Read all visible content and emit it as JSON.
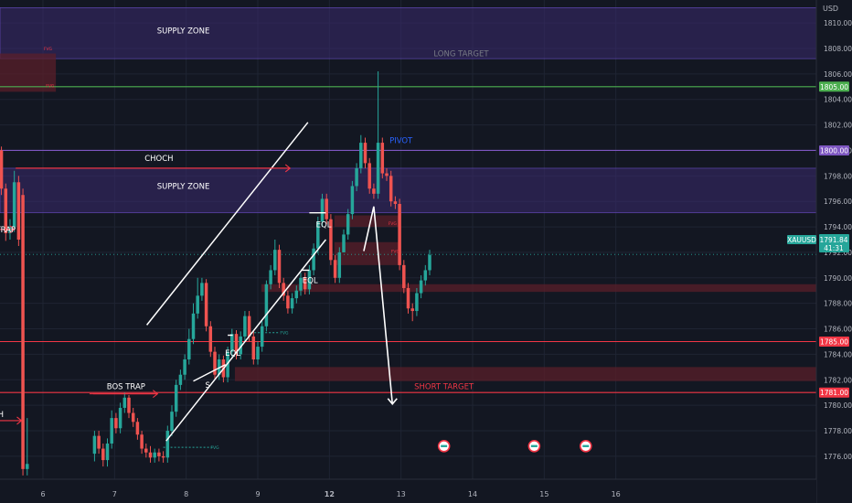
{
  "colors": {
    "background": "#131722",
    "grid": "#1f2433",
    "axis_text": "#b2b5be",
    "bull": "#26a69a",
    "bear": "#ef5350",
    "supply_zone": "#3b2a6e",
    "supply_zone_border": "#6a4fc6",
    "pivot": "#7e57c2",
    "long_target": "#4caf50",
    "red_level": "#f23645",
    "fvg_red": "#5a1f2a",
    "fvg_teal": "#1f5248",
    "drawing": "#ffffff",
    "pivot_text": "#2962ff",
    "short_target_text": "#f23645",
    "arrow_red": "#f23645"
  },
  "chart_data": {
    "type": "candlestick",
    "symbol": "XAUUSD",
    "currency": "USD",
    "ylim": [
      1774.2,
      1811.8
    ],
    "xlim": [
      5.4,
      16.8
    ],
    "y_ticks": [
      "1810.00",
      "1808.00",
      "1806.00",
      "1804.00",
      "1802.00",
      "1800.00",
      "1798.00",
      "1796.00",
      "1794.00",
      "1792.00",
      "1790.00",
      "1788.00",
      "1786.00",
      "1784.00",
      "1782.00",
      "1780.00",
      "1778.00",
      "1776.00"
    ],
    "x_ticks": [
      {
        "x": 6,
        "label": "6"
      },
      {
        "x": 7,
        "label": "7"
      },
      {
        "x": 8,
        "label": "8"
      },
      {
        "x": 9,
        "label": "9"
      },
      {
        "x": 10,
        "label": "12"
      },
      {
        "x": 11,
        "label": "13"
      },
      {
        "x": 12,
        "label": "14"
      },
      {
        "x": 13,
        "label": "15"
      },
      {
        "x": 14,
        "label": "16"
      }
    ],
    "price_labels": [
      {
        "price": 1805.0,
        "text": "1805.00",
        "color": "#4caf50"
      },
      {
        "price": 1800.0,
        "text": "1800.00",
        "color": "#7e57c2"
      },
      {
        "price": 1785.0,
        "text": "1785.00",
        "color": "#f23645"
      },
      {
        "price": 1781.0,
        "text": "1781.00",
        "color": "#f23645"
      }
    ],
    "current_price": {
      "price": 1791.84,
      "symbol": "XAUUSD",
      "value": "1791.84",
      "countdown": "41:31",
      "color": "#26a69a"
    },
    "levels": [
      {
        "price": 1805.0,
        "x1": 5.4,
        "x2": 16.8,
        "color": "#4caf50"
      },
      {
        "price": 1800.0,
        "x1": 5.4,
        "x2": 16.8,
        "color": "#7e57c2"
      },
      {
        "price": 1785.0,
        "x1": 5.4,
        "x2": 16.8,
        "color": "#f23645"
      },
      {
        "price": 1781.0,
        "x1": 5.4,
        "x2": 16.8,
        "color": "#f23645"
      },
      {
        "price": 1798.6,
        "x1": 5.62,
        "x2": 9.45,
        "color": "#f23645"
      },
      {
        "price": 1780.9,
        "x1": 6.65,
        "x2": 7.6,
        "color": "#f23645"
      }
    ],
    "zones": [
      {
        "type": "supply",
        "y_top": 1811.2,
        "y_bot": 1807.2,
        "x1": 5.4,
        "x2": 16.8
      },
      {
        "type": "supply",
        "y_top": 1798.6,
        "y_bot": 1795.1,
        "x1": 5.4,
        "x2": 16.8
      },
      {
        "type": "fvg_red",
        "y_top": 1807.6,
        "y_bot": 1804.6,
        "x1": 5.4,
        "x2": 6.18
      },
      {
        "type": "fvg_red",
        "y_top": 1789.5,
        "y_bot": 1788.9,
        "x1": 9.05,
        "x2": 16.8
      },
      {
        "type": "fvg_red",
        "y_top": 1783.0,
        "y_bot": 1781.9,
        "x1": 8.68,
        "x2": 16.8
      },
      {
        "type": "fvg_red",
        "y_top": 1792.8,
        "y_bot": 1791.0,
        "x1": 10.07,
        "x2": 11.0
      },
      {
        "type": "fvg_red",
        "y_top": 1794.9,
        "y_bot": 1794.0,
        "x1": 10.07,
        "x2": 10.98
      }
    ],
    "fvg_tags": [
      {
        "x": 6.07,
        "price": 1808.0,
        "text": "FVG",
        "color": "#f23645"
      },
      {
        "x": 6.1,
        "price": 1805.1,
        "text": "FVG",
        "color": "#f23645"
      },
      {
        "x": 10.88,
        "price": 1794.3,
        "text": "FVG",
        "color": "#f23645"
      },
      {
        "x": 10.92,
        "price": 1792.1,
        "text": "FVG",
        "color": "#f23645"
      },
      {
        "x": 9.37,
        "price": 1785.7,
        "text": "FVG",
        "color": "#26a69a"
      },
      {
        "x": 8.4,
        "price": 1776.7,
        "text": "FVG",
        "color": "#26a69a"
      }
    ],
    "fvg_lines": [
      {
        "price": 1785.7,
        "x1": 8.9,
        "x2": 9.3,
        "color": "#26a69a"
      },
      {
        "price": 1776.7,
        "x1": 7.68,
        "x2": 8.38,
        "color": "#26a69a"
      }
    ],
    "labels": [
      {
        "id": "supply_zone_top",
        "text": "SUPPLY ZONE",
        "x": 7.96,
        "price": 1809.4,
        "color": "#ffffff"
      },
      {
        "id": "long_target",
        "text": "LONG TARGET",
        "x": 11.84,
        "price": 1807.6,
        "color": "#787b86"
      },
      {
        "id": "pivot",
        "text": "PIVOT",
        "x": 11.0,
        "price": 1800.8,
        "color": "#2962ff"
      },
      {
        "id": "choch",
        "text": "CHOCH",
        "x": 7.62,
        "price": 1799.4,
        "color": "#ffffff"
      },
      {
        "id": "supply_zone_mid",
        "text": "SUPPLY ZONE",
        "x": 7.96,
        "price": 1797.2,
        "color": "#ffffff"
      },
      {
        "id": "eql_top",
        "text": "EQL",
        "x": 9.92,
        "price": 1794.2,
        "color": "#ffffff"
      },
      {
        "id": "eql_mid",
        "text": "EQL",
        "x": 9.73,
        "price": 1789.8,
        "color": "#ffffff"
      },
      {
        "id": "eql_low",
        "text": "EQL",
        "x": 8.65,
        "price": 1784.1,
        "color": "#ffffff"
      },
      {
        "id": "trap_left",
        "text": "TRAP",
        "x": 5.48,
        "price": 1793.8,
        "color": "#ffffff"
      },
      {
        "id": "bos_trap",
        "text": "BOS TRAP",
        "x": 7.16,
        "price": 1781.5,
        "color": "#ffffff"
      },
      {
        "id": "s_mark",
        "text": "S",
        "x": 8.3,
        "price": 1781.6,
        "color": "#ffffff"
      },
      {
        "id": "h_left",
        "text": "H",
        "x": 5.41,
        "price": 1779.3,
        "color": "#ffffff"
      },
      {
        "id": "short_target",
        "text": "SHORT TARGET",
        "x": 11.6,
        "price": 1781.5,
        "color": "#f23645"
      }
    ],
    "channel_lines": [
      {
        "x1": 7.45,
        "y1": 1786.3,
        "x2": 9.7,
        "y2": 1802.2
      },
      {
        "x1": 7.72,
        "y1": 1777.2,
        "x2": 9.95,
        "y2": 1793.0
      }
    ],
    "segments": [
      {
        "x1": 8.1,
        "y1": 1781.9,
        "x2": 8.55,
        "y2": 1783.2
      },
      {
        "x1": 8.58,
        "y1": 1785.5,
        "x2": 8.65,
        "y2": 1785.5
      },
      {
        "x1": 9.72,
        "y1": 1795.1,
        "x2": 9.95,
        "y2": 1795.1
      },
      {
        "x1": 9.6,
        "y1": 1790.6,
        "x2": 9.72,
        "y2": 1790.6
      }
    ],
    "projection": [
      {
        "x": 10.48,
        "y": 1792.1
      },
      {
        "x": 10.62,
        "y": 1795.6
      },
      {
        "x": 10.88,
        "y": 1780.1
      }
    ],
    "red_arrows": [
      {
        "x1": 5.4,
        "y1": 1793.8,
        "x2": 5.6,
        "y2": 1793.8
      },
      {
        "x1": 5.62,
        "y1": 1798.6,
        "x2": 9.45,
        "y2": 1798.6
      },
      {
        "x1": 6.7,
        "y1": 1780.9,
        "x2": 7.6,
        "y2": 1780.9
      },
      {
        "x1": 5.4,
        "y1": 1778.8,
        "x2": 5.7,
        "y2": 1778.8
      }
    ],
    "candles_left": {
      "x": [
        5.42,
        5.48,
        5.54,
        5.6,
        5.66,
        5.72,
        5.78
      ],
      "o": [
        1800.0,
        1797.0,
        1793.5,
        1794.0,
        1797.5,
        1796.5,
        1775.0
      ],
      "c": [
        1797.0,
        1793.5,
        1794.0,
        1797.5,
        1793.0,
        1775.0,
        1775.4
      ],
      "h": [
        1800.3,
        1797.4,
        1794.6,
        1798.4,
        1798.0,
        1797.0,
        1779.0
      ],
      "l": [
        1796.5,
        1792.9,
        1793.0,
        1793.6,
        1792.5,
        1774.5,
        1774.5
      ]
    },
    "candles_week": {
      "x_start": 6.72,
      "x_step": 0.06,
      "o": [
        1776.2,
        1777.6,
        1776.6,
        1775.7,
        1777.0,
        1779.0,
        1778.2,
        1779.8,
        1780.6,
        1779.4,
        1778.7,
        1777.7,
        1776.6,
        1776.3,
        1775.9,
        1776.3,
        1776.0,
        1775.9,
        1778.0,
        1779.5,
        1781.6,
        1782.4,
        1783.6,
        1785.2,
        1787.2,
        1788.6,
        1789.6,
        1786.2,
        1784.2,
        1782.4,
        1783.6,
        1782.2,
        1784.2,
        1785.6,
        1784.0,
        1785.4,
        1787.0,
        1785.4,
        1783.6,
        1784.6,
        1786.2,
        1789.5,
        1790.6,
        1792.2,
        1789.6,
        1788.6,
        1787.6,
        1788.4,
        1789.0,
        1790.0,
        1789.1,
        1790.6,
        1792.3,
        1794.4,
        1796.2,
        1794.6,
        1791.4,
        1790.0,
        1792.0,
        1793.4,
        1795.0,
        1797.2,
        1798.6,
        1800.6,
        1799.0,
        1797.0,
        1796.6,
        1800.6,
        1798.2,
        1798.0,
        1796.0,
        1795.8,
        1791.0,
        1789.2,
        1787.6,
        1787.4,
        1788.8,
        1789.8,
        1790.6
      ],
      "c": [
        1777.6,
        1776.6,
        1775.7,
        1777.0,
        1779.0,
        1778.2,
        1779.8,
        1780.6,
        1779.4,
        1778.7,
        1777.7,
        1776.6,
        1776.3,
        1775.9,
        1776.3,
        1776.0,
        1775.9,
        1778.0,
        1779.5,
        1781.6,
        1782.4,
        1783.6,
        1785.2,
        1787.2,
        1788.6,
        1789.6,
        1786.2,
        1784.2,
        1782.4,
        1783.6,
        1782.2,
        1784.2,
        1785.6,
        1784.0,
        1785.4,
        1787.0,
        1785.4,
        1783.6,
        1784.6,
        1786.2,
        1789.5,
        1790.6,
        1792.2,
        1789.6,
        1788.6,
        1787.6,
        1788.4,
        1789.0,
        1790.0,
        1789.1,
        1790.6,
        1792.3,
        1794.4,
        1796.2,
        1794.6,
        1791.4,
        1790.0,
        1792.0,
        1793.4,
        1795.0,
        1797.2,
        1798.6,
        1800.6,
        1799.0,
        1797.0,
        1796.6,
        1800.6,
        1798.2,
        1798.0,
        1796.0,
        1795.8,
        1791.0,
        1789.2,
        1787.6,
        1787.4,
        1788.8,
        1789.8,
        1790.6,
        1791.8
      ],
      "h": [
        1778.0,
        1778.0,
        1777.0,
        1777.4,
        1779.6,
        1779.4,
        1780.2,
        1781.0,
        1780.8,
        1779.8,
        1779.0,
        1778.0,
        1777.0,
        1776.8,
        1776.6,
        1776.6,
        1776.4,
        1778.4,
        1780.0,
        1782.0,
        1782.8,
        1784.0,
        1786.0,
        1788.0,
        1790.0,
        1790.0,
        1789.9,
        1786.6,
        1784.6,
        1784.0,
        1783.9,
        1784.6,
        1786.0,
        1785.9,
        1785.8,
        1787.4,
        1787.4,
        1785.8,
        1785.0,
        1786.6,
        1789.8,
        1791.0,
        1793.0,
        1792.6,
        1790.0,
        1789.0,
        1788.8,
        1789.4,
        1790.4,
        1790.4,
        1791.0,
        1792.7,
        1794.8,
        1796.6,
        1796.6,
        1795.0,
        1791.8,
        1792.4,
        1793.8,
        1795.4,
        1797.6,
        1799.0,
        1801.2,
        1801.0,
        1799.4,
        1797.4,
        1806.2,
        1801.0,
        1798.6,
        1798.4,
        1796.4,
        1796.2,
        1791.4,
        1789.6,
        1788.0,
        1789.2,
        1790.2,
        1791.0,
        1792.2
      ],
      "l": [
        1775.6,
        1776.2,
        1775.2,
        1775.2,
        1776.6,
        1777.8,
        1777.8,
        1779.4,
        1779.0,
        1778.3,
        1777.3,
        1776.2,
        1775.9,
        1775.5,
        1775.5,
        1775.6,
        1775.5,
        1775.5,
        1777.6,
        1779.1,
        1781.2,
        1782.0,
        1783.2,
        1784.8,
        1786.8,
        1788.2,
        1785.8,
        1783.8,
        1782.0,
        1782.0,
        1781.8,
        1781.8,
        1783.8,
        1783.6,
        1783.6,
        1785.0,
        1785.0,
        1783.2,
        1783.2,
        1784.2,
        1785.8,
        1789.1,
        1790.2,
        1789.2,
        1788.2,
        1787.2,
        1787.2,
        1788.0,
        1788.6,
        1788.7,
        1788.7,
        1790.2,
        1791.9,
        1794.0,
        1794.2,
        1791.0,
        1789.6,
        1789.6,
        1792.0,
        1793.0,
        1794.6,
        1796.8,
        1798.2,
        1798.6,
        1796.6,
        1796.2,
        1796.2,
        1797.8,
        1797.6,
        1795.6,
        1795.4,
        1790.6,
        1788.8,
        1787.2,
        1786.6,
        1787.0,
        1788.4,
        1789.4,
        1790.2
      ]
    },
    "logo_markers": [
      {
        "x": 11.6,
        "price": 1776.8
      },
      {
        "x": 12.86,
        "price": 1776.8
      },
      {
        "x": 13.58,
        "price": 1776.8
      }
    ]
  }
}
